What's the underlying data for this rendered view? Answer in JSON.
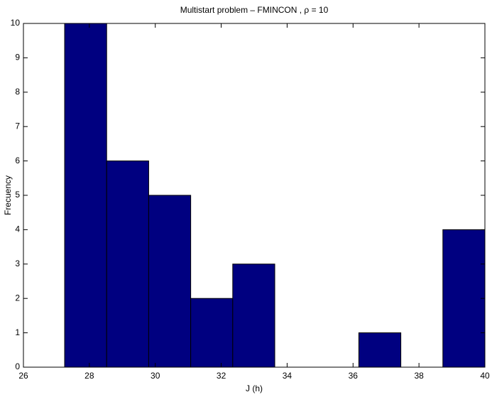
{
  "chart_data": {
    "type": "histogram",
    "title": "Multistart problem – FMINCON , ρ = 10",
    "x_label": "J (h)",
    "y_label": "Frecuency",
    "bins": [
      27.25,
      28.525,
      29.8,
      31.075,
      32.35,
      33.625,
      34.9,
      36.175,
      37.45,
      38.725,
      40.0
    ],
    "counts": [
      10,
      6,
      5,
      2,
      3,
      0,
      0,
      1,
      0,
      4
    ],
    "color": "#000080",
    "xlim": [
      26,
      40
    ],
    "xticks": [
      26,
      28,
      30,
      32,
      34,
      36,
      38,
      40
    ],
    "ylim": [
      0,
      10
    ],
    "yticks": [
      0,
      1,
      2,
      3,
      4,
      5,
      6,
      7,
      8,
      9,
      10
    ]
  }
}
